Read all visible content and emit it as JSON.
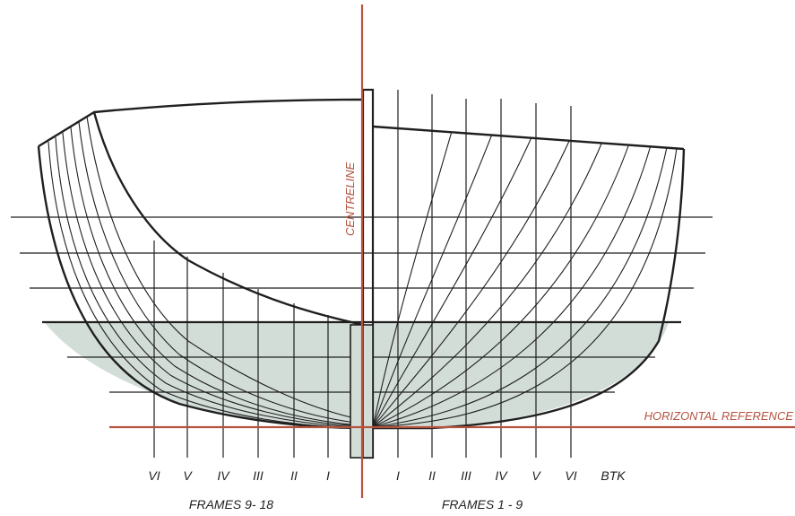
{
  "labels": {
    "centreline": "CENTRELINE",
    "horizontal_reference": "HORIZONTAL REFERENCE",
    "frames_aft": "FRAMES 9- 18",
    "frames_fwd": "FRAMES 1 - 9"
  },
  "left_buttocks": [
    "VI",
    "V",
    "IV",
    "III",
    "II",
    "I"
  ],
  "right_buttocks": [
    "I",
    "II",
    "III",
    "IV",
    "V",
    "VI",
    "BTK"
  ],
  "colors": {
    "reference": "#b5533f",
    "hull_line": "#1f1f1f",
    "underwater_fill": "#d3ddd8"
  }
}
